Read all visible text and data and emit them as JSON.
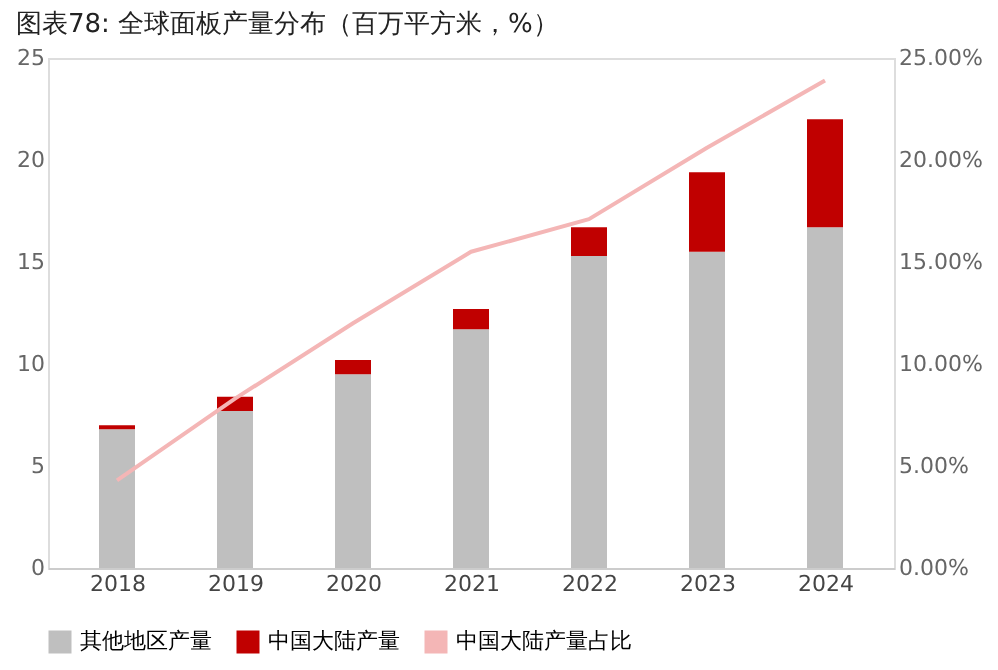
{
  "chart_data": {
    "type": "bar",
    "title": "图表78: 全球面板产量分布（百万平方米，%）",
    "categories": [
      "2018",
      "2019",
      "2020",
      "2021",
      "2022",
      "2023",
      "2024"
    ],
    "stacked": true,
    "series": [
      {
        "name": "其他地区产量",
        "color": "#bfbfbf",
        "values": [
          6.8,
          7.7,
          9.5,
          11.7,
          15.3,
          15.5,
          16.7
        ]
      },
      {
        "name": "中国大陆产量",
        "color": "#c00000",
        "values": [
          0.2,
          0.7,
          0.7,
          1.0,
          1.4,
          3.9,
          5.3
        ]
      },
      {
        "name": "中国大陆产量占比",
        "color": "#f4b6b6",
        "type": "line",
        "axis": "y2",
        "values": [
          4.3,
          8.3,
          12.0,
          15.5,
          17.1,
          20.6,
          23.9
        ]
      }
    ],
    "ylim": [
      0,
      25
    ],
    "yticks": [
      0,
      5,
      10,
      15,
      20,
      25
    ],
    "y2lim": [
      0,
      25
    ],
    "y2ticks": [
      {
        "value": 0,
        "label": "0.00%"
      },
      {
        "value": 5,
        "label": "5.00%"
      },
      {
        "value": 10,
        "label": "10.00%"
      },
      {
        "value": 15,
        "label": "15.00%"
      },
      {
        "value": 20,
        "label": "20.00%"
      },
      {
        "value": 25,
        "label": "25.00%"
      }
    ],
    "grid": false,
    "legend": "bottom"
  }
}
